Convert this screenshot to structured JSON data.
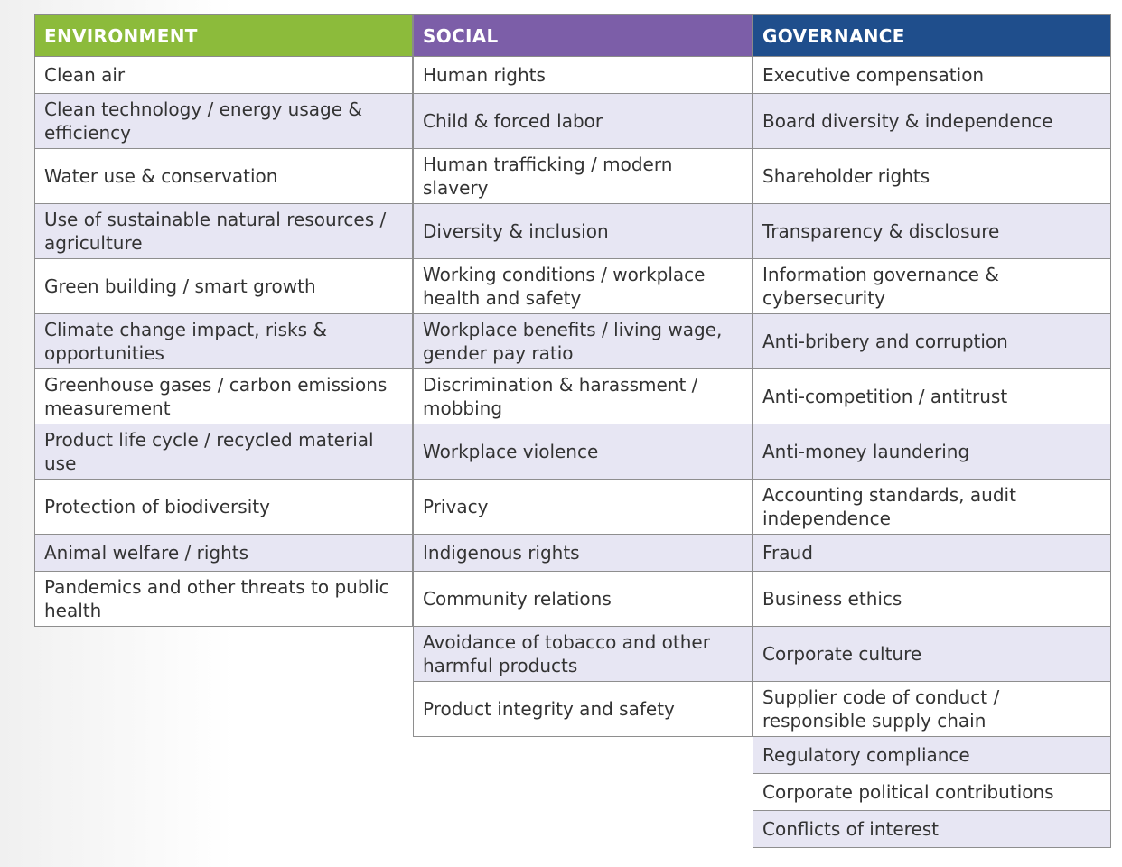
{
  "colors": {
    "environment": "#8cbb3b",
    "social": "#7c5ea8",
    "governance": "#1f4e8c",
    "row_shade": "#e7e6f3",
    "border": "#8e8e8e"
  },
  "columns": [
    {
      "header": "ENVIRONMENT",
      "items": [
        "Clean air",
        "Clean technology / energy usage & efficiency",
        "Water use & conservation",
        "Use of sustainable natural resources / agriculture",
        "Green building / smart growth",
        "Climate change impact, risks & opportunities",
        "Greenhouse gases / carbon emissions measurement",
        "Product life cycle / recycled material use",
        "Protection of biodiversity",
        "Animal welfare / rights",
        "Pandemics and other threats to public health"
      ]
    },
    {
      "header": "SOCIAL",
      "items": [
        "Human rights",
        "Child & forced labor",
        "Human trafficking / modern slavery",
        "Diversity & inclusion",
        "Working conditions / workplace health and safety",
        "Workplace benefits / living wage, gender pay ratio",
        "Discrimination & harassment / mobbing",
        "Workplace violence",
        "Privacy",
        "Indigenous rights",
        "Community relations",
        "Avoidance of tobacco and other harmful products",
        "Product integrity and safety"
      ]
    },
    {
      "header": "GOVERNANCE",
      "items": [
        "Executive compensation",
        "Board diversity & independence",
        "Shareholder rights",
        "Transparency & disclosure",
        "Information governance & cybersecurity",
        "Anti-bribery and corruption",
        "Anti-competition / antitrust",
        "Anti-money laundering",
        "Accounting standards, audit independence",
        "Fraud",
        "Business ethics",
        "Corporate culture",
        "Supplier code of conduct / responsible supply chain",
        "Regulatory compliance",
        "Corporate political contributions",
        "Conflicts of interest"
      ]
    }
  ]
}
